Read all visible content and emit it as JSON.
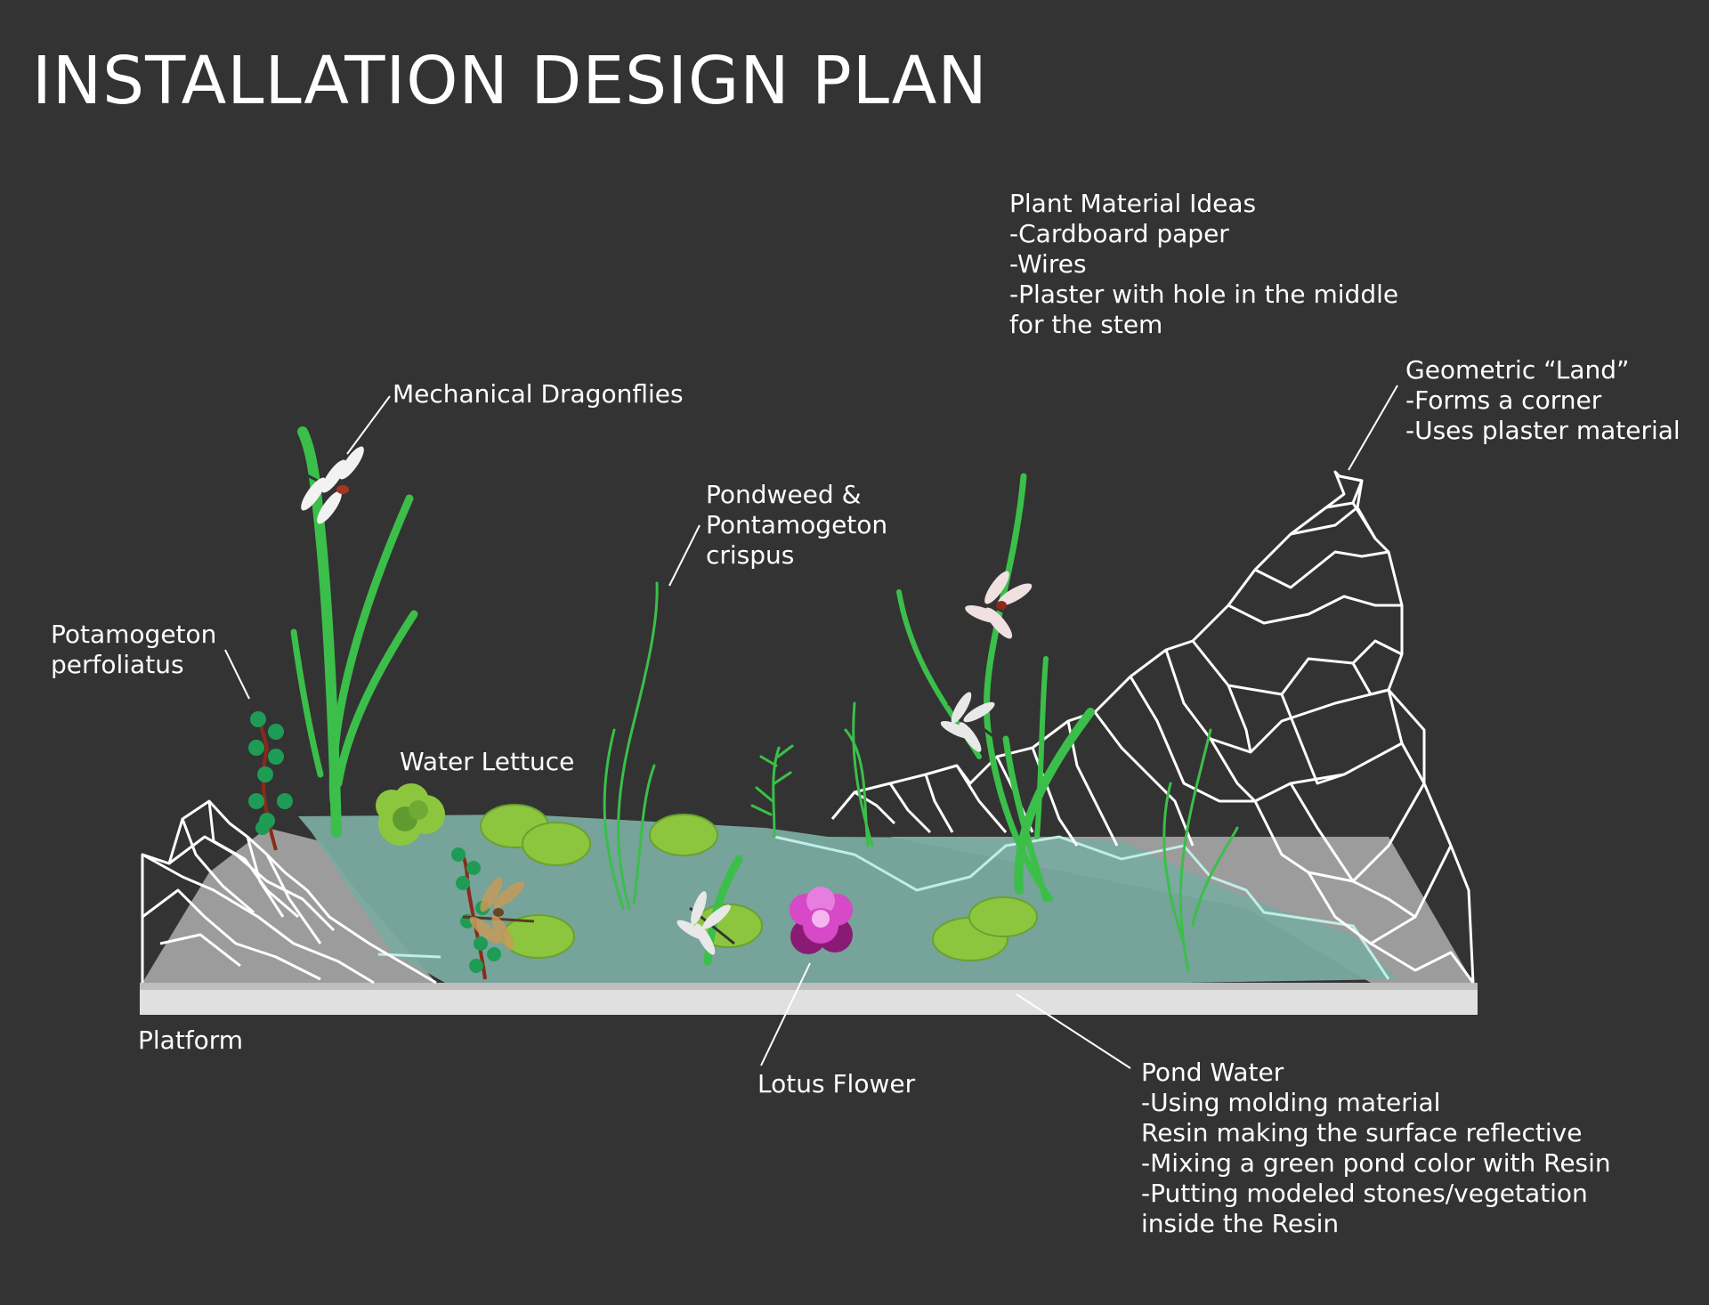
{
  "title": "INSTALLATION DESIGN PLAN",
  "labels": {
    "plant_material": "Plant Material Ideas\n-Cardboard paper\n-Wires\n-Plaster with hole in the middle\nfor the stem",
    "geometric_land": "Geometric “Land”\n-Forms a corner\n-Uses plaster material",
    "dragonflies": "Mechanical Dragonflies",
    "pondweed": "Pondweed &\nPontamogeton\ncrispus",
    "potamogeton": "Potamogeton\nperfoliatus",
    "water_lettuce": "Water Lettuce",
    "platform": "Platform",
    "lotus": "Lotus Flower",
    "pond_water": "Pond Water\n-Using molding material\nResin making the surface reflective\n-Mixing a green pond color with Resin\n-Putting modeled stones/vegetation\ninside the Resin"
  },
  "colors": {
    "background": "#333333",
    "water": "#7aaaa0",
    "platform": "#e0e0e0",
    "plant_green": "#3bbf4a",
    "lily_pad": "#8cc63f",
    "lotus": "#d649c7",
    "leader_line": "#ffffff"
  }
}
